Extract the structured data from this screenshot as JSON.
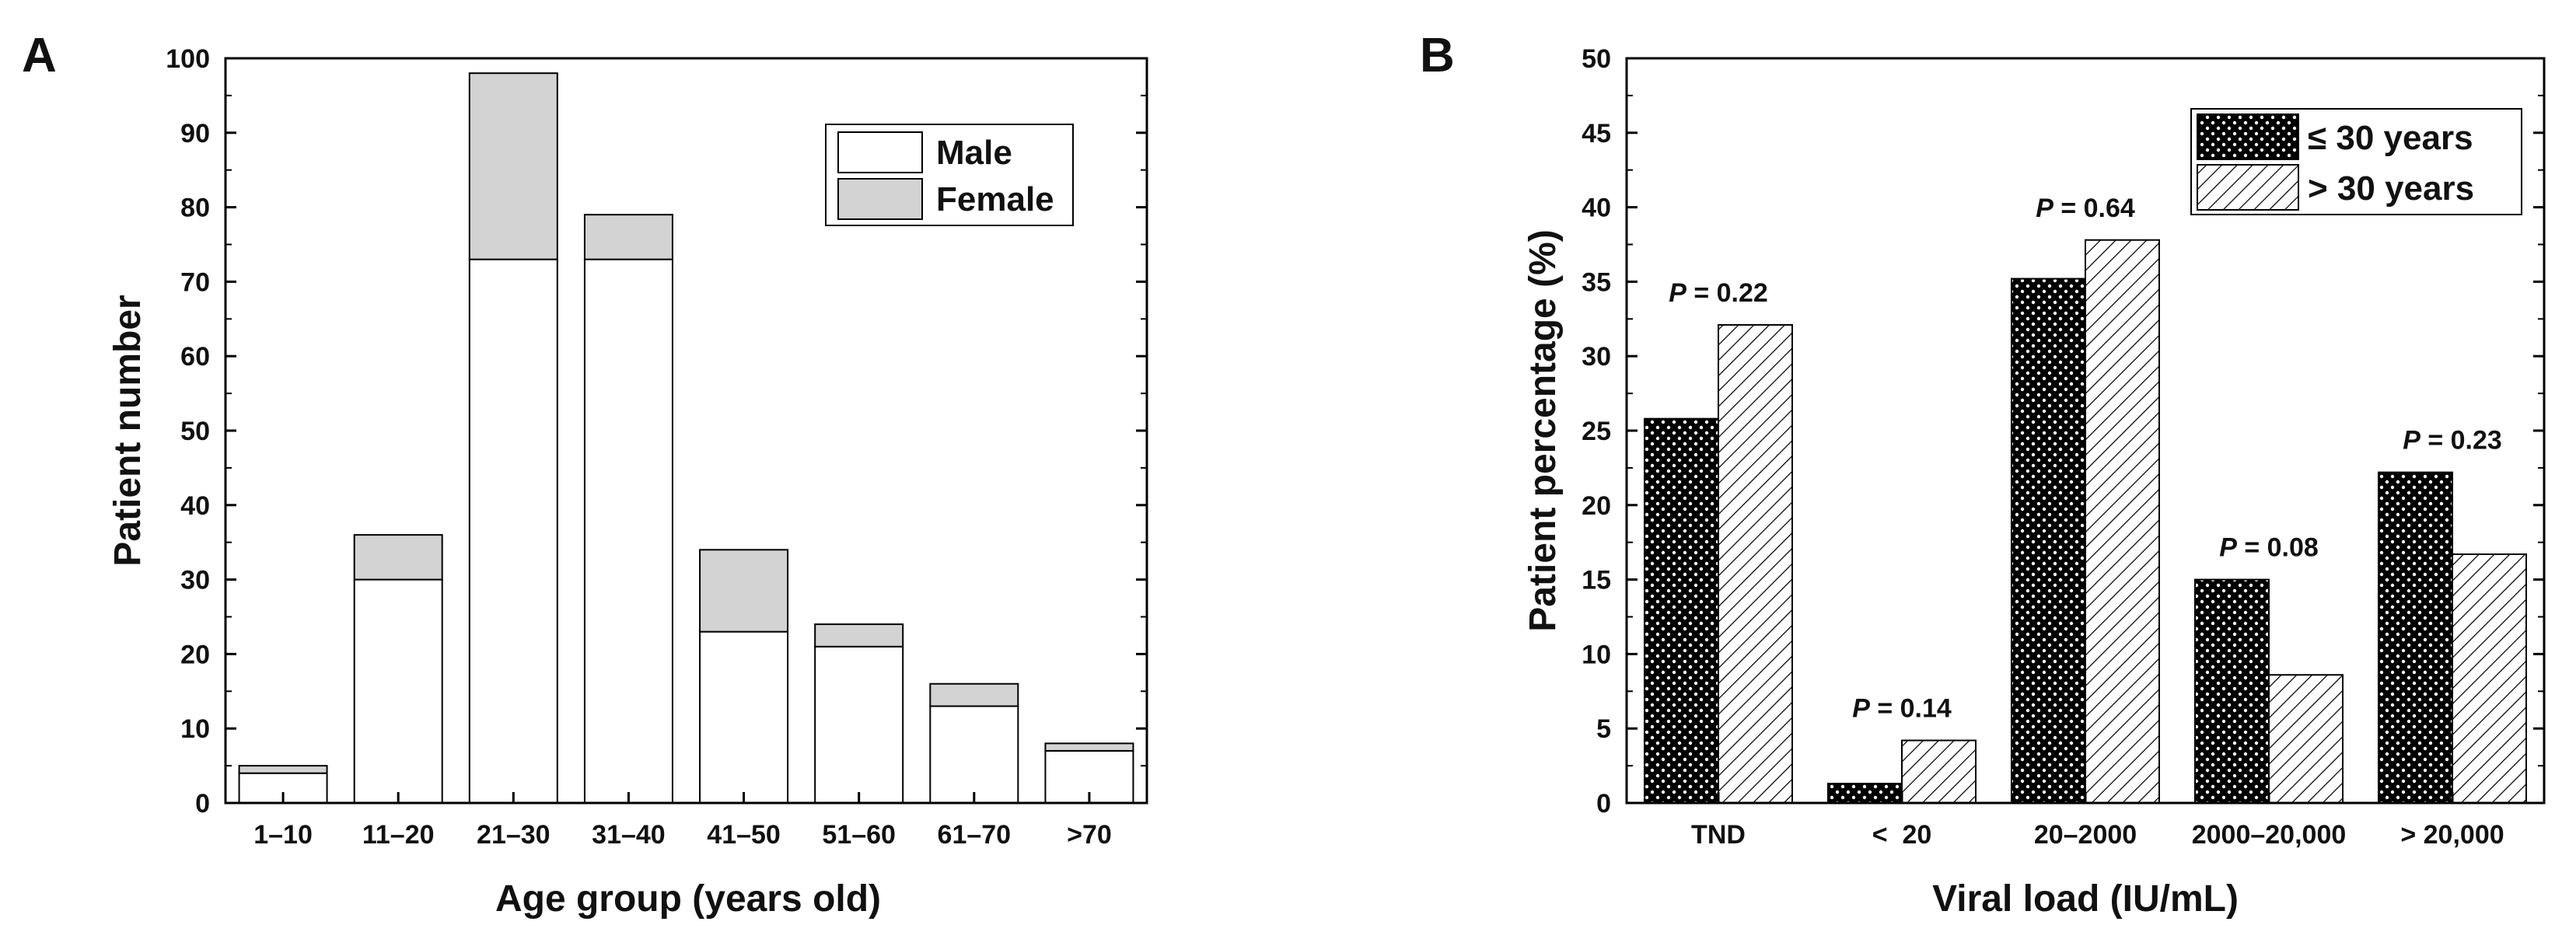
{
  "chart_data": [
    {
      "panel": "A",
      "type": "bar",
      "stacked": true,
      "categories": [
        "1–10",
        "11–20",
        "21–30",
        "31–40",
        "41–50",
        "51–60",
        "61–70",
        ">70"
      ],
      "series": [
        {
          "name": "Male",
          "values": [
            4,
            30,
            73,
            73,
            23,
            21,
            13,
            7
          ],
          "color": "#ffffff"
        },
        {
          "name": "Female",
          "values": [
            1,
            6,
            25,
            6,
            11,
            3,
            3,
            1
          ],
          "color": "#d3d3d3"
        }
      ],
      "xlabel": "Age group (years old)",
      "ylabel": "Patient number",
      "ylim": [
        0,
        100
      ],
      "yticks": [
        "0",
        "10",
        "20",
        "30",
        "40",
        "50",
        "60",
        "70",
        "80",
        "90",
        "100"
      ],
      "legend": {
        "position": "top-right",
        "entries": [
          "Male",
          "Female"
        ]
      }
    },
    {
      "panel": "B",
      "type": "bar",
      "stacked": false,
      "categories": [
        "TND",
        "<  20",
        "20–2000",
        "2000–20,000",
        "> 20,000"
      ],
      "series": [
        {
          "name": "≤ 30 years",
          "values": [
            25.8,
            1.3,
            35.2,
            15.0,
            22.2
          ],
          "pattern": "black-dotted"
        },
        {
          "name": "> 30 years",
          "values": [
            32.1,
            4.2,
            37.8,
            8.6,
            16.7
          ],
          "pattern": "hatched"
        }
      ],
      "annotations": [
        {
          "prefix": "P",
          "text": " = 0.22"
        },
        {
          "prefix": "P",
          "text": " = 0.14"
        },
        {
          "prefix": "P",
          "text": " = 0.64"
        },
        {
          "prefix": "P",
          "text": " = 0.08"
        },
        {
          "prefix": "P",
          "text": " = 0.23"
        }
      ],
      "xlabel": "Viral load (IU/mL)",
      "ylabel": "Patient percentage (%)",
      "ylim": [
        0,
        50
      ],
      "yticks": [
        "0",
        "5",
        "10",
        "15",
        "20",
        "25",
        "30",
        "35",
        "40",
        "45",
        "50"
      ],
      "legend": {
        "position": "top-right",
        "entries": [
          "≤ 30 years",
          "> 30 years"
        ]
      }
    }
  ]
}
